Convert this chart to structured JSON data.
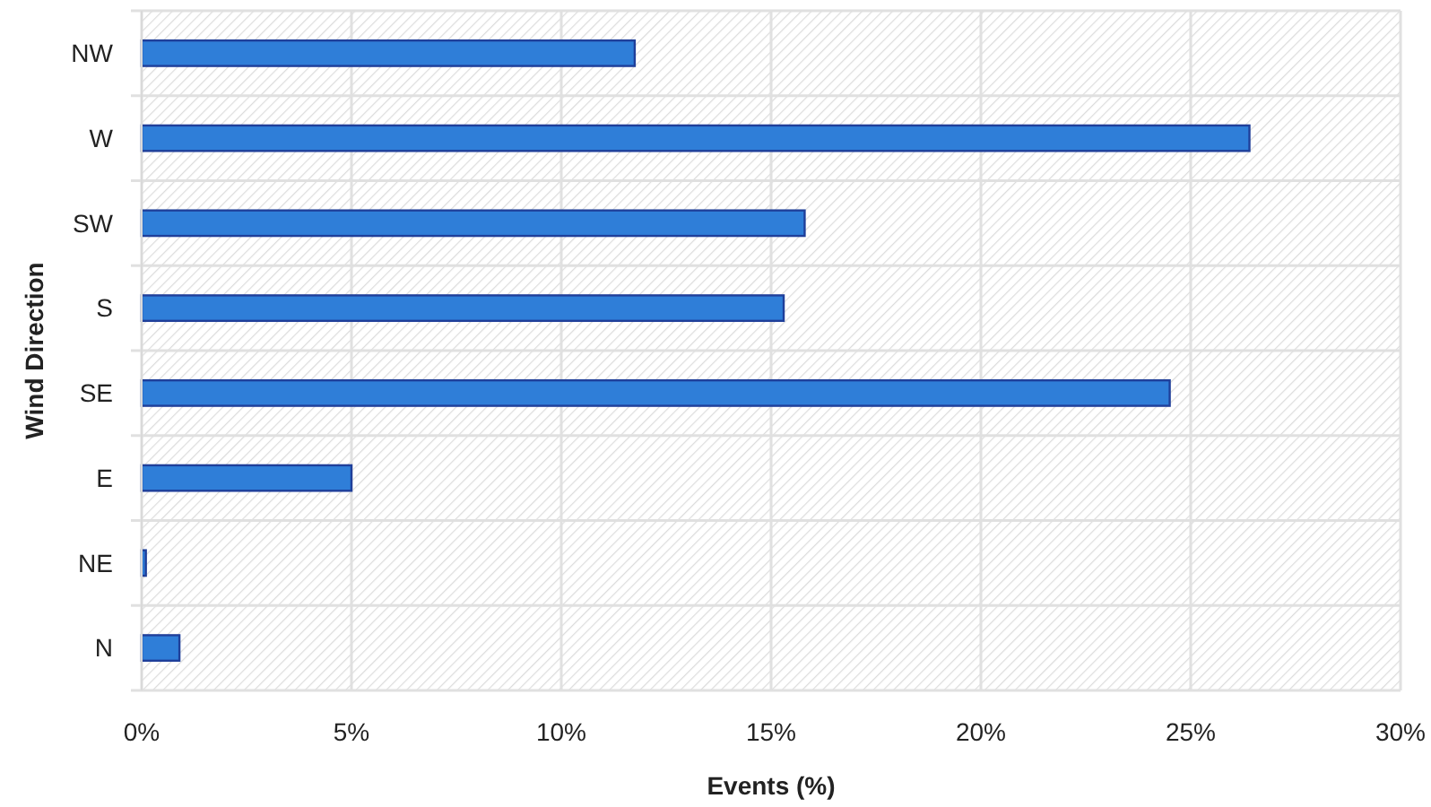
{
  "chart_data": {
    "type": "bar",
    "orientation": "horizontal",
    "xlabel": "Events (%)",
    "ylabel": "Wind Direction",
    "categories": [
      "NW",
      "W",
      "SW",
      "S",
      "SE",
      "E",
      "NE",
      "N"
    ],
    "values": [
      11.75,
      26.4,
      15.8,
      15.3,
      24.5,
      5.0,
      0.1,
      0.9
    ],
    "color": "#2f7ed8",
    "xlim": [
      0,
      30
    ],
    "xticks": [
      {
        "value": 0,
        "label": "0%"
      },
      {
        "value": 5,
        "label": "5%"
      },
      {
        "value": 10,
        "label": "10%"
      },
      {
        "value": 15,
        "label": "15%"
      },
      {
        "value": 20,
        "label": "20%"
      },
      {
        "value": 25,
        "label": "25%"
      },
      {
        "value": 30,
        "label": "30%"
      }
    ],
    "grid": true
  }
}
